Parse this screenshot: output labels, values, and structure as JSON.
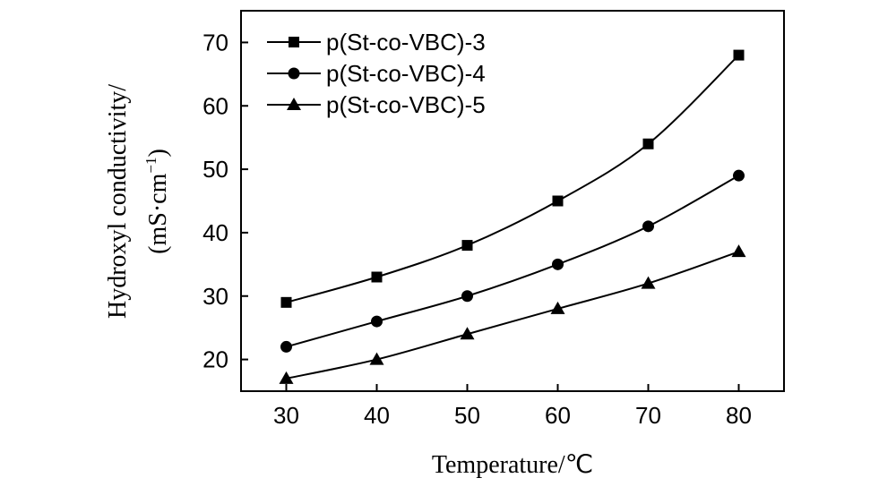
{
  "chart_data": {
    "type": "line",
    "title": "",
    "xlabel": "Temperature/℃",
    "ylabel_line1": "Hydroxyl conductivity/",
    "ylabel_line2": "(mS·cm",
    "ylabel_sup": "−1",
    "ylabel_close": ")",
    "x": [
      30,
      40,
      50,
      60,
      70,
      80
    ],
    "xticks": [
      "30",
      "40",
      "50",
      "60",
      "70",
      "80"
    ],
    "yticks": [
      "20",
      "30",
      "40",
      "50",
      "60",
      "70"
    ],
    "xlim": [
      25,
      85
    ],
    "ylim": [
      15,
      75
    ],
    "grid": false,
    "legend_position": "top-left",
    "series": [
      {
        "name": "p(St-co-VBC)-3",
        "marker": "square",
        "values": [
          29,
          33,
          38,
          45,
          54,
          68
        ]
      },
      {
        "name": "p(St-co-VBC)-4",
        "marker": "circle",
        "values": [
          22,
          26,
          30,
          35,
          41,
          49
        ]
      },
      {
        "name": "p(St-co-VBC)-5",
        "marker": "triangle",
        "values": [
          17,
          20,
          24,
          28,
          32,
          37
        ]
      }
    ]
  }
}
